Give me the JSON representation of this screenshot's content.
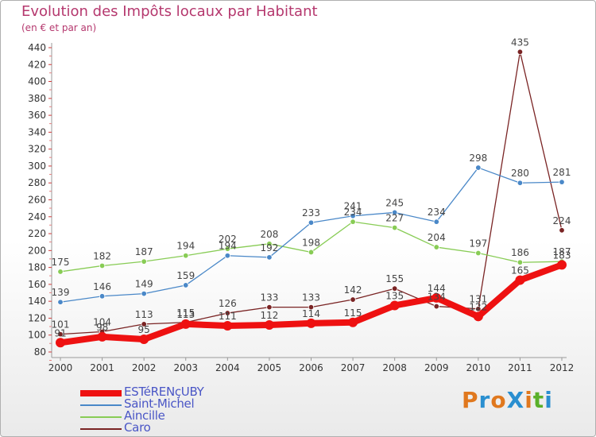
{
  "title": "Evolution des Impôts locaux par Habitant",
  "subtitle": "(en € et par an)",
  "logo": {
    "text": "ProXiti",
    "colors": [
      "#e0781e",
      "#2a8fd0",
      "#e0781e",
      "#2a8fd0",
      "#e0781e",
      "#5ab02a",
      "#2a8fd0"
    ]
  },
  "chart_data": {
    "type": "line",
    "x": [
      "2000",
      "2001",
      "2002",
      "2003",
      "2004",
      "2005",
      "2006",
      "2007",
      "2008",
      "2009",
      "2010",
      "2011",
      "2012"
    ],
    "ylim": [
      80,
      440
    ],
    "yticks": [
      "80",
      "100",
      "120",
      "140",
      "160",
      "180",
      "200",
      "220",
      "240",
      "260",
      "280",
      "300",
      "320",
      "340",
      "360",
      "380",
      "400",
      "420",
      "440"
    ],
    "grid": false,
    "legend_position": "bottom-left",
    "series": [
      {
        "name": "ESTéRENçUBY",
        "color": "#ee1111",
        "values": [
          91,
          98,
          95,
          113,
          111,
          112,
          114,
          115,
          135,
          144,
          122,
          165,
          183
        ],
        "labels": [
          "91",
          "98",
          "95",
          "113",
          "111",
          "112",
          "114",
          "115",
          "135",
          "144",
          "122",
          "165",
          "183"
        ]
      },
      {
        "name": "Saint-Michel",
        "color": "#4a88c8",
        "values": [
          139,
          146,
          149,
          159,
          194,
          192,
          233,
          241,
          245,
          234,
          298,
          280,
          281
        ],
        "labels": [
          "139",
          "146",
          "149",
          "159",
          "194",
          "192",
          "233",
          "241",
          "245",
          "234",
          "298",
          "280",
          "281"
        ]
      },
      {
        "name": "Aincille",
        "color": "#88cc55",
        "values": [
          175,
          182,
          187,
          194,
          202,
          208,
          198,
          234,
          227,
          204,
          197,
          186,
          187
        ],
        "labels": [
          "175",
          "182",
          "187",
          "194",
          "202",
          "208",
          "198",
          "234",
          "227",
          "204",
          "197",
          "186",
          "187"
        ]
      },
      {
        "name": "Caro",
        "color": "#7a2424",
        "values": [
          101,
          104,
          113,
          115,
          126,
          133,
          133,
          142,
          155,
          134,
          131,
          435,
          224
        ],
        "labels": [
          "101",
          "104",
          "113",
          "115",
          "126",
          "133",
          "133",
          "142",
          "155",
          "134",
          "131",
          "435",
          "224"
        ]
      }
    ]
  }
}
